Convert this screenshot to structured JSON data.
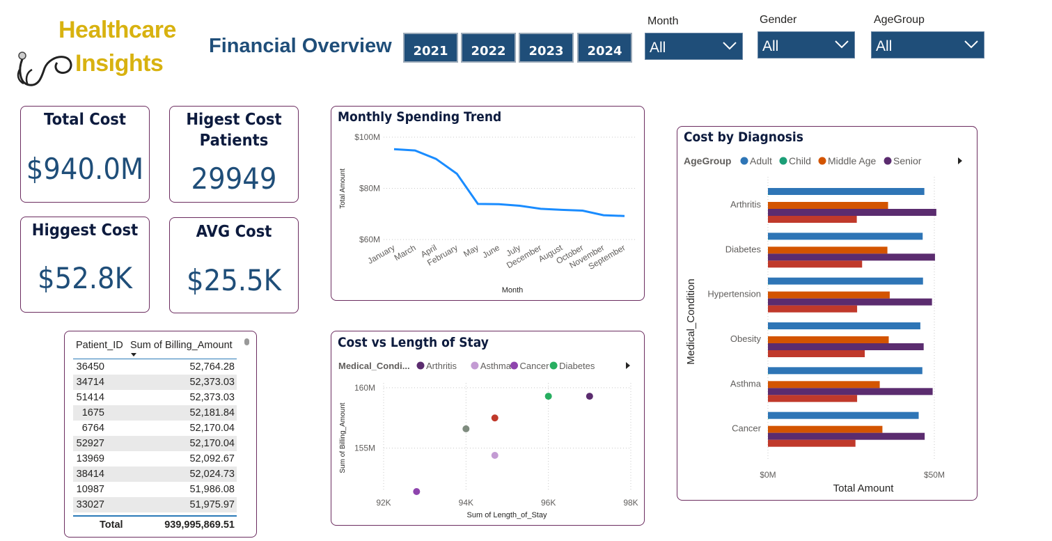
{
  "logo": {
    "line1": "Healthcare",
    "line2": "Insights",
    "icon": "stethoscope-icon"
  },
  "page_title": "Financial Overview",
  "years": [
    "2021",
    "2022",
    "2023",
    "2024"
  ],
  "slicers": {
    "month": {
      "label": "Month",
      "value": "All"
    },
    "gender": {
      "label": "Gender",
      "value": "All"
    },
    "agegroup": {
      "label": "AgeGroup",
      "value": "All"
    }
  },
  "kpis": {
    "total_cost": {
      "title": "Total Cost",
      "value": "$940.0M"
    },
    "highest_cost_patients": {
      "title_line1": "Higest Cost",
      "title_line2": "Patients",
      "value": "29949"
    },
    "highest_cost": {
      "title": "Higgest Cost",
      "value": "$52.8K"
    },
    "avg_cost": {
      "title": "AVG Cost",
      "value": "$25.5K"
    }
  },
  "table": {
    "headers": [
      "Patient_ID",
      "Sum of Billing_Amount"
    ],
    "rows": [
      [
        "36450",
        "52,764.28"
      ],
      [
        "34714",
        "52,373.03"
      ],
      [
        "51414",
        "52,373.03"
      ],
      [
        "1675",
        "52,181.84"
      ],
      [
        "6764",
        "52,170.04"
      ],
      [
        "52927",
        "52,170.04"
      ],
      [
        "13969",
        "52,092.67"
      ],
      [
        "38414",
        "52,024.73"
      ],
      [
        "10987",
        "51,986.08"
      ],
      [
        "33027",
        "51,975.97"
      ]
    ],
    "total_label": "Total",
    "total_value": "939,995,869.51"
  },
  "colors": {
    "navy": "#1f4e79",
    "gold": "#d8b210",
    "card_border": "#6b2c5f",
    "line": "#1a8cff",
    "adult": "#2e75b6",
    "child": "#1b9e77",
    "middle_age": "#d35400",
    "senior": "#5b2c6f",
    "fourth_bar": "#c0392b"
  },
  "chart_data": [
    {
      "id": "monthly_trend",
      "type": "line",
      "title": "Monthly Spending Trend",
      "xlabel": "Month",
      "ylabel": "Total Amount",
      "categories": [
        "January",
        "March",
        "April",
        "February",
        "May",
        "June",
        "July",
        "December",
        "August",
        "October",
        "November",
        "September"
      ],
      "values": [
        95.3,
        94.8,
        91.5,
        85.7,
        73.9,
        73.8,
        73.2,
        72.0,
        71.6,
        71.3,
        69.5,
        69.2
      ],
      "yticks": [
        "$60M",
        "$80M",
        "$100M"
      ],
      "ylim": [
        60,
        100
      ],
      "grid": true
    },
    {
      "id": "cost_vs_stay",
      "type": "scatter",
      "title": "Cost vs Length of Stay",
      "xlabel": "Sum of Length_of_Stay",
      "ylabel": "Sum of Billing_Amount",
      "legend_title": "Medical_Condi...",
      "legend": [
        {
          "name": "Arthritis",
          "color": "#5b2c6f"
        },
        {
          "name": "Asthma",
          "color": "#c39bd3"
        },
        {
          "name": "Cancer",
          "color": "#8e44ad"
        },
        {
          "name": "Diabetes",
          "color": "#27ae60"
        }
      ],
      "points": [
        {
          "x": 92.8,
          "y": 151.4,
          "color": "#8e44ad"
        },
        {
          "x": 94.0,
          "y": 156.6,
          "color": "#7f8c7f"
        },
        {
          "x": 94.7,
          "y": 154.4,
          "color": "#c39bd3"
        },
        {
          "x": 94.7,
          "y": 157.5,
          "color": "#c0392b"
        },
        {
          "x": 96.0,
          "y": 159.3,
          "color": "#27ae60"
        },
        {
          "x": 97.0,
          "y": 159.3,
          "color": "#5b2c6f"
        }
      ],
      "xticks": [
        "92K",
        "94K",
        "96K",
        "98K"
      ],
      "yticks": [
        "155M",
        "160M"
      ],
      "xlim": [
        92,
        98
      ],
      "ylim": [
        151.4,
        160.4
      ],
      "grid": true,
      "legend_position": "top-left"
    },
    {
      "id": "cost_by_diagnosis",
      "type": "bar",
      "orientation": "horizontal",
      "title": "Cost by Diagnosis",
      "xlabel": "Total Amount",
      "ylabel": "Medical_Condition",
      "legend_title": "AgeGroup",
      "categories": [
        "Arthritis",
        "Diabetes",
        "Hypertension",
        "Obesity",
        "Asthma",
        "Cancer"
      ],
      "series": [
        {
          "name": "Adult",
          "color": "#2e75b6",
          "values": [
            47,
            46.5,
            46.6,
            45.8,
            46.4,
            45.3
          ]
        },
        {
          "name": "Child",
          "color": "#1b9e77",
          "values": [
            0.3,
            0.3,
            0.3,
            0.3,
            0.3,
            0.3
          ]
        },
        {
          "name": "Middle Age",
          "color": "#d35400",
          "values": [
            36.1,
            35.9,
            36.6,
            36.3,
            33.6,
            34.4
          ]
        },
        {
          "name": "Senior",
          "color": "#5b2c6f",
          "values": [
            50.6,
            50.2,
            49.3,
            46.8,
            49.5,
            47.1
          ]
        },
        {
          "name": "",
          "color": "#c0392b",
          "values": [
            26.7,
            28.3,
            26.8,
            29.1,
            26.8,
            26.3
          ]
        }
      ],
      "xticks": [
        "$0M",
        "$50M"
      ],
      "xlim": [
        0,
        59
      ],
      "grid": true,
      "legend_position": "top-left"
    }
  ]
}
